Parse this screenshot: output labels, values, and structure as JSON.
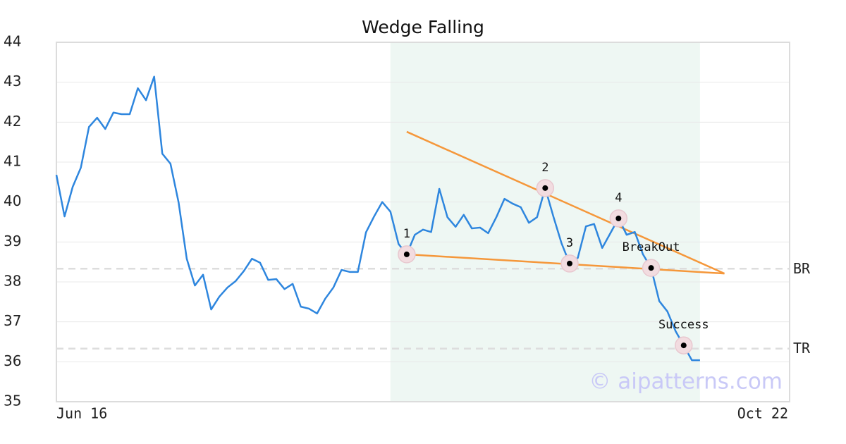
{
  "chart_data": {
    "type": "line",
    "title": "Wedge Falling",
    "x": [
      0,
      1,
      2,
      3,
      4,
      5,
      6,
      7,
      8,
      9,
      10,
      11,
      12,
      13,
      14,
      15,
      16,
      17,
      18,
      19,
      20,
      21,
      22,
      23,
      24,
      25,
      26,
      27,
      28,
      29,
      30,
      31,
      32,
      33,
      34,
      35,
      36,
      37,
      38,
      39,
      40,
      41,
      42,
      43,
      44,
      45,
      46,
      47,
      48,
      49,
      50,
      51,
      52,
      53,
      54,
      55,
      56,
      57,
      58,
      59,
      60,
      61,
      62,
      63,
      64,
      65,
      66,
      67,
      68,
      69,
      70,
      71,
      72,
      73,
      74,
      75,
      76,
      77,
      78,
      79
    ],
    "values": [
      40.68,
      39.64,
      40.38,
      40.86,
      41.88,
      42.11,
      41.83,
      42.24,
      42.2,
      42.2,
      42.85,
      42.55,
      43.14,
      41.21,
      40.96,
      39.99,
      38.58,
      37.91,
      38.18,
      37.31,
      37.63,
      37.86,
      38.02,
      38.27,
      38.58,
      38.48,
      38.05,
      38.07,
      37.82,
      37.95,
      37.38,
      37.33,
      37.21,
      37.58,
      37.86,
      38.3,
      38.25,
      38.25,
      39.24,
      39.64,
      40.0,
      39.76,
      38.95,
      38.69,
      39.18,
      39.31,
      39.25,
      40.33,
      39.62,
      39.38,
      39.68,
      39.34,
      39.36,
      39.22,
      39.62,
      40.08,
      39.96,
      39.87,
      39.48,
      39.62,
      40.35,
      39.64,
      38.97,
      38.46,
      38.6,
      39.39,
      39.45,
      38.85,
      39.22,
      39.59,
      39.18,
      39.25,
      38.69,
      38.35,
      37.52,
      37.26,
      36.77,
      36.41,
      36.04,
      36.04
    ],
    "color": "#2e86de",
    "xlim": [
      0,
      90
    ],
    "xticks": [
      {
        "value": 0,
        "label": "Jun 16"
      },
      {
        "value": 90,
        "label": "Oct 22"
      }
    ],
    "ylim": [
      35,
      44
    ],
    "yticks": [
      35,
      36,
      37,
      38,
      39,
      40,
      41,
      42,
      43,
      44
    ],
    "grid": true,
    "highlight_range": [
      41,
      79
    ],
    "highlight_color": "#eef7f3",
    "trendlines": [
      {
        "x": [
          43,
          82
        ],
        "y": [
          41.76,
          38.21
        ],
        "color": "#f5973a"
      },
      {
        "x": [
          43,
          82
        ],
        "y": [
          38.69,
          38.21
        ],
        "color": "#f5973a"
      }
    ],
    "levels": [
      {
        "label": "BR",
        "value": 38.33
      },
      {
        "label": "TR",
        "value": 36.33
      }
    ],
    "annotations": [
      {
        "label": "1",
        "x": 43
      },
      {
        "label": "2",
        "x": 60
      },
      {
        "label": "3",
        "x": 63
      },
      {
        "label": "4",
        "x": 69
      },
      {
        "label": "BreakOut",
        "x": 73
      },
      {
        "label": "Success",
        "x": 77
      }
    ],
    "watermark": "© aipatterns.com"
  }
}
